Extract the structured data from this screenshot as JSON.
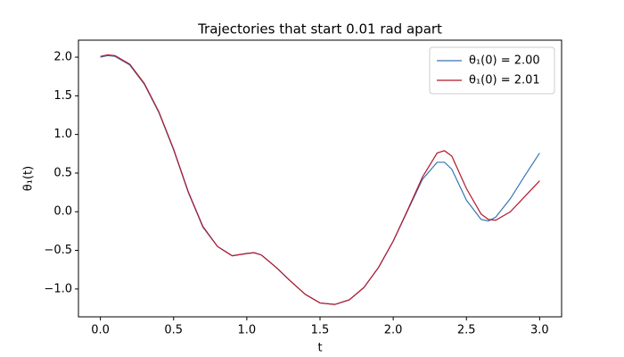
{
  "chart_data": {
    "type": "line",
    "title": "Trajectories that start 0.01 rad apart",
    "xlabel": "t",
    "ylabel": "θ₁(t)",
    "x": [
      0,
      0.05,
      0.1,
      0.2,
      0.3,
      0.4,
      0.5,
      0.6,
      0.7,
      0.8,
      0.9,
      1.0,
      1.05,
      1.1,
      1.2,
      1.3,
      1.4,
      1.5,
      1.6,
      1.7,
      1.8,
      1.9,
      2.0,
      2.1,
      2.2,
      2.3,
      2.35,
      2.4,
      2.5,
      2.6,
      2.65,
      2.7,
      2.8,
      2.9,
      3.0
    ],
    "series": [
      {
        "name": "θ₁(0) = 2.00",
        "color": "#3a75b0",
        "values": [
          2.0,
          2.02,
          2.01,
          1.9,
          1.65,
          1.28,
          0.8,
          0.25,
          -0.2,
          -0.45,
          -0.57,
          -0.54,
          -0.53,
          -0.56,
          -0.72,
          -0.9,
          -1.07,
          -1.18,
          -1.2,
          -1.14,
          -0.98,
          -0.72,
          -0.38,
          0.02,
          0.42,
          0.64,
          0.64,
          0.55,
          0.15,
          -0.1,
          -0.12,
          -0.07,
          0.17,
          0.47,
          0.76
        ]
      },
      {
        "name": "θ₁(0) = 2.01",
        "color": "#b2182b",
        "values": [
          2.01,
          2.03,
          2.02,
          1.91,
          1.66,
          1.29,
          0.81,
          0.26,
          -0.19,
          -0.45,
          -0.57,
          -0.54,
          -0.53,
          -0.56,
          -0.72,
          -0.9,
          -1.07,
          -1.18,
          -1.2,
          -1.14,
          -0.98,
          -0.72,
          -0.38,
          0.03,
          0.45,
          0.76,
          0.79,
          0.72,
          0.3,
          -0.03,
          -0.1,
          -0.11,
          0.0,
          0.2,
          0.4
        ]
      }
    ],
    "xlim": [
      -0.15,
      3.15
    ],
    "xticks": [
      {
        "value": 0,
        "label": "0.0"
      },
      0.5,
      {
        "value": 1,
        "label": "1.0"
      },
      1.5,
      {
        "value": 2,
        "label": "2.0"
      },
      2.5,
      {
        "value": 3,
        "label": "3.0"
      }
    ],
    "ylim": [
      -1.36,
      2.22
    ],
    "yticks": [
      {
        "value": -1,
        "label": "−1.0"
      },
      {
        "value": -0.5,
        "label": "−0.5"
      },
      {
        "value": 0,
        "label": "0.0"
      },
      0.5,
      {
        "value": 1,
        "label": "1.0"
      },
      1.5,
      {
        "value": 2,
        "label": "2.0"
      }
    ],
    "grid": false,
    "legend": "upper right"
  }
}
